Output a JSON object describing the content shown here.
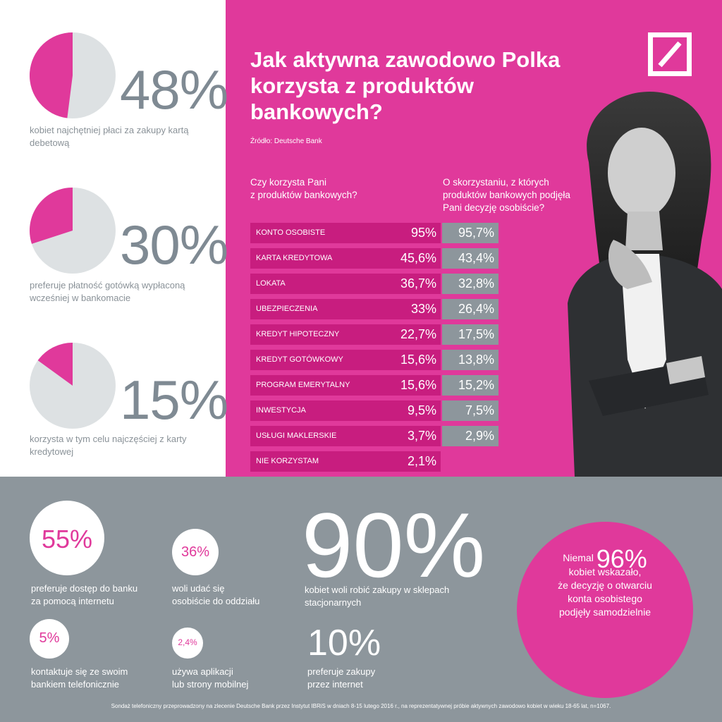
{
  "left_stats": [
    {
      "percent": "48%",
      "caption_line1": "kobiet najchętniej płaci za zakupy kartą",
      "caption_line2": "debetową",
      "fraction": 0.48
    },
    {
      "percent": "30%",
      "caption_line1": "preferuje płatność gotówką wypłaconą",
      "caption_line2": "wcześniej w bankomacie",
      "fraction": 0.3
    },
    {
      "percent": "15%",
      "caption_line1": "korzysta w tym celu najczęściej z karty",
      "caption_line2": "kredytowej",
      "fraction": 0.15
    }
  ],
  "title": {
    "line1": "Jak aktywna zawodowo Polka",
    "line2": "korzysta z produktów",
    "line3": "bankowych?"
  },
  "source": "Źródło: Deutsche Bank",
  "question1": {
    "line1": "Czy korzysta Pani",
    "line2": "z produktów bankowych?"
  },
  "question2": {
    "line1": "O skorzystaniu, z których",
    "line2": "produktów bankowych podjęła",
    "line3": "Pani decyzję osobiście?"
  },
  "table": [
    {
      "label": "KONTO OSOBISTE",
      "v1": "95%",
      "v2": "95,7%"
    },
    {
      "label": "KARTA KREDYTOWA",
      "v1": "45,6%",
      "v2": "43,4%"
    },
    {
      "label": "LOKATA",
      "v1": "36,7%",
      "v2": "32,8%"
    },
    {
      "label": "UBEZPIECZENIA",
      "v1": "33%",
      "v2": "26,4%"
    },
    {
      "label": "KREDYT HIPOTECZNY",
      "v1": "22,7%",
      "v2": "17,5%"
    },
    {
      "label": "KREDYT GOTÓWKOWY",
      "v1": "15,6%",
      "v2": "13,8%"
    },
    {
      "label": "PROGRAM EMERYTALNY",
      "v1": "15,6%",
      "v2": "15,2%"
    },
    {
      "label": "INWESTYCJA",
      "v1": "9,5%",
      "v2": "7,5%"
    },
    {
      "label": "USŁUGI MAKLERSKIE",
      "v1": "3,7%",
      "v2": "2,9%"
    },
    {
      "label": "NIE KORZYSTAM",
      "v1": "2,1%",
      "v2": ""
    }
  ],
  "bottom": {
    "s55": {
      "percent": "55%",
      "line1": "preferuje dostęp do banku",
      "line2": "za pomocą internetu"
    },
    "s36": {
      "percent": "36%",
      "line1": "woli udać się",
      "line2": "osobiście do oddziału"
    },
    "s5": {
      "percent": "5%",
      "line1": "kontaktuje się ze swoim",
      "line2": "bankiem telefonicznie"
    },
    "s24": {
      "percent": "2,4%",
      "line1": "używa aplikacji",
      "line2": "lub strony mobilnej"
    },
    "s90": {
      "percent": "90%",
      "line1": "kobiet woli robić zakupy w sklepach",
      "line2": "stacjonarnych"
    },
    "s10": {
      "percent": "10%",
      "line1": "preferuje zakupy",
      "line2": "przez internet"
    },
    "s96": {
      "prefix": "Niemal",
      "percent": "96%",
      "line1": "kobiet wskazało,",
      "line2": "że decyzję o otwarciu",
      "line3": "konta osobistego",
      "line4": "podjęły samodzielnie"
    }
  },
  "footnote": "Sondaż telefoniczny przeprowadzony na zlecenie Deutsche Bank przez Instytut IBRiS w dniach 8-15 lutego 2016 r., na reprezentatywnej próbie aktywnych zawodowo kobiet w wieku 18-65 lat, n=1067.",
  "colors": {
    "pink": "#e0399b",
    "dark_pink": "#c81d7f",
    "gray": "#8d969c",
    "light_gray": "#dde1e3"
  }
}
